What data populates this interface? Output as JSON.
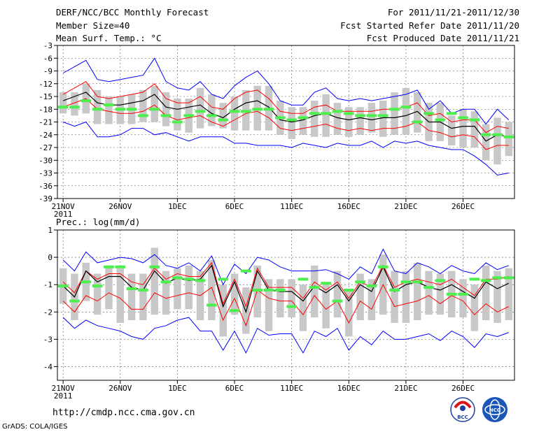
{
  "header": {
    "title": "DERF/NCC/BCC Monthly Forecast",
    "member_size": "Member Size=40",
    "variable": "Mean Surf. Temp.: °C",
    "period": "For 2011/11/21-2011/12/30",
    "start_date": "Fcst Started Refer Date 2011/11/20",
    "produced_date": "Fcst Produced Date 2011/11/21"
  },
  "footer": {
    "url": "http://cmdp.ncc.cma.gov.cn",
    "credit": "GrADS: COLA/IGES",
    "logo_bcc_text": "BCC",
    "logo_ncc_text": "NCC"
  },
  "colors": {
    "ens_max_min": "#0000ff",
    "spread": "#ff0000",
    "mean": "#000000",
    "box": "#c8c8c8",
    "observed_marker": "#4cf04c",
    "grid": "#555555"
  },
  "chart_data": [
    {
      "type": "line",
      "title": "Mean Surf. Temp.: °C",
      "x_tick_labels": [
        "21NOV",
        "26NOV",
        "1DEC",
        "6DEC",
        "11DEC",
        "16DEC",
        "21DEC",
        "26DEC"
      ],
      "x_tick_days": [
        1,
        6,
        11,
        16,
        21,
        26,
        31,
        36
      ],
      "x_year_label": "2011",
      "days": 40,
      "xlim": [
        0.5,
        40.5
      ],
      "ylim": [
        -39,
        -3
      ],
      "y_ticks": [
        -3,
        -6,
        -9,
        -12,
        -15,
        -18,
        -21,
        -24,
        -27,
        -30,
        -33,
        -36,
        -39
      ],
      "series": [
        {
          "name": "ensemble max",
          "color": "#0000ff",
          "values": [
            -9.5,
            -8,
            -6.5,
            -11,
            -11.5,
            -11,
            -10.5,
            -10,
            -6,
            -11.5,
            -13,
            -13.5,
            -11.5,
            -14.5,
            -15.5,
            -12.5,
            -10.5,
            -9,
            -12,
            -16,
            -17,
            -17,
            -14,
            -13,
            -15.5,
            -16,
            -15.5,
            -16,
            -15.5,
            -15,
            -14.5,
            -13.5,
            -18,
            -16,
            -19,
            -18,
            -18,
            -21.5,
            -18,
            -20.5
          ]
        },
        {
          "name": "upper spread",
          "color": "#ff0000",
          "values": [
            -14.5,
            -13,
            -11.5,
            -15,
            -15.5,
            -15,
            -14.5,
            -14,
            -12,
            -15.5,
            -16.5,
            -16.5,
            -15,
            -17.5,
            -18,
            -15.5,
            -14,
            -13.5,
            -15.5,
            -18.5,
            -19,
            -19,
            -17.5,
            -17,
            -18.5,
            -18.5,
            -18.5,
            -18.5,
            -18,
            -18,
            -17.5,
            -16.5,
            -19.5,
            -19,
            -21,
            -20.5,
            -20.5,
            -23.5,
            -22,
            -22.5
          ]
        },
        {
          "name": "ensemble mean",
          "color": "#000000",
          "values": [
            -16,
            -15,
            -14,
            -16.5,
            -17,
            -17,
            -16.5,
            -16,
            -14.5,
            -17.5,
            -18,
            -17.5,
            -17,
            -19,
            -20,
            -18,
            -16.5,
            -16,
            -17.5,
            -20.5,
            -21,
            -20.5,
            -19.5,
            -19,
            -20,
            -20.5,
            -20,
            -20.5,
            -20,
            -20,
            -19.5,
            -18.5,
            -21,
            -21,
            -22.5,
            -22,
            -22,
            -25.5,
            -24,
            -24.5
          ]
        },
        {
          "name": "lower spread",
          "color": "#ff0000",
          "values": [
            -17.5,
            -16.5,
            -15.5,
            -18,
            -18.5,
            -19,
            -19,
            -18.5,
            -17,
            -19.5,
            -20.5,
            -20,
            -19.5,
            -21,
            -22,
            -20.5,
            -19,
            -18.5,
            -20,
            -22.5,
            -23,
            -22.5,
            -22,
            -21.5,
            -22.5,
            -23,
            -22.5,
            -23,
            -22.5,
            -22.5,
            -22,
            -21,
            -23,
            -23.5,
            -24.5,
            -24,
            -24.5,
            -27.5,
            -26.5,
            -26.5
          ]
        },
        {
          "name": "ensemble min",
          "color": "#0000ff",
          "values": [
            -21,
            -22,
            -21,
            -24.5,
            -24.5,
            -24,
            -22.5,
            -22.5,
            -24,
            -23.5,
            -24.5,
            -25.5,
            -24.5,
            -24.5,
            -24.5,
            -26,
            -26,
            -26.5,
            -26.5,
            -26.5,
            -27,
            -26,
            -26.5,
            -27,
            -26,
            -26.5,
            -26.5,
            -25.5,
            -27,
            -25.5,
            -26,
            -25.5,
            -26.5,
            -27,
            -27.5,
            -27.5,
            -29,
            -31,
            -33.5,
            -33
          ]
        }
      ],
      "box_low": [
        -19,
        -19.5,
        -19,
        -21.5,
        -21.5,
        -21.5,
        -21.5,
        -21,
        -21,
        -22,
        -23,
        -23.5,
        -22.5,
        -22,
        -22.5,
        -23,
        -23,
        -23,
        -23,
        -24,
        -25,
        -24,
        -24.5,
        -24.5,
        -24,
        -24.5,
        -24,
        -23.5,
        -24.5,
        -24,
        -24,
        -23.5,
        -25.5,
        -25.5,
        -26.5,
        -27,
        -27,
        -30,
        -31,
        -29
      ],
      "box_high": [
        -14,
        -14,
        -12,
        -13.5,
        -15,
        -15,
        -14.5,
        -13.5,
        -12.5,
        -14,
        -15.5,
        -15.5,
        -13,
        -14.5,
        -16.5,
        -15,
        -13.5,
        -12.5,
        -12.5,
        -16,
        -17.5,
        -17.5,
        -16,
        -14.5,
        -16.5,
        -17.5,
        -17.5,
        -16.5,
        -16,
        -14,
        -13,
        -14,
        -16.5,
        -16.5,
        -19.5,
        -18,
        -18.5,
        -21.5,
        -20,
        -21
      ],
      "observed": [
        -17.5,
        -17.5,
        -16,
        -18,
        -17,
        -18,
        -18,
        -19.5,
        -18,
        -19.5,
        -21,
        -19.5,
        -18.5,
        -19.5,
        -20.5,
        -18.5,
        -18.5,
        -18,
        -18,
        -20,
        -20.5,
        -20,
        -19,
        -19,
        -18.5,
        -19,
        -19.5,
        -19.5,
        -19.5,
        -18,
        -17.5,
        -21,
        -19,
        -20.5,
        -19,
        -20,
        -20.5,
        -24,
        -24,
        -24.5
      ]
    },
    {
      "type": "line",
      "title": "Prec.: log(mm/d)",
      "x_tick_labels": [
        "21NOV",
        "26NOV",
        "1DEC",
        "6DEC",
        "11DEC",
        "16DEC",
        "21DEC",
        "26DEC"
      ],
      "x_tick_days": [
        1,
        6,
        11,
        16,
        21,
        26,
        31,
        36
      ],
      "x_year_label": "2011",
      "days": 40,
      "xlim": [
        0.5,
        40.5
      ],
      "ylim": [
        -4.5,
        1
      ],
      "y_ticks": [
        1,
        0,
        -1,
        -2,
        -3,
        -4
      ],
      "series": [
        {
          "name": "ensemble max",
          "color": "#0000ff",
          "values": [
            -0.1,
            -0.5,
            0.2,
            -0.2,
            -0.1,
            0,
            -0.05,
            -0.2,
            0.1,
            -0.3,
            -0.4,
            -0.2,
            -0.5,
            0.05,
            -1,
            -0.25,
            -0.6,
            0,
            -0.1,
            -0.35,
            -0.5,
            -0.5,
            -0.5,
            -0.45,
            -0.6,
            -0.8,
            -0.35,
            -0.6,
            0.3,
            -0.5,
            -0.6,
            -0.2,
            -0.35,
            -0.6,
            -0.3,
            -0.5,
            -0.6,
            -0.2,
            -0.45,
            -0.3
          ]
        },
        {
          "name": "upper spread",
          "color": "#ff0000",
          "values": [
            -0.9,
            -1.3,
            -0.5,
            -0.8,
            -0.6,
            -0.6,
            -0.9,
            -1,
            -0.4,
            -0.8,
            -0.6,
            -0.7,
            -0.7,
            -0.2,
            -1.7,
            -0.8,
            -1.8,
            -0.4,
            -1.1,
            -1.1,
            -1.1,
            -1.5,
            -0.9,
            -1.2,
            -0.9,
            -1.5,
            -0.9,
            -1.1,
            -0.3,
            -1.1,
            -0.9,
            -0.8,
            -0.9,
            -1,
            -0.8,
            -1.1,
            -1.4,
            -0.8,
            -0.8,
            -0.7
          ]
        },
        {
          "name": "ensemble mean",
          "color": "#000000",
          "values": [
            -1.05,
            -1.45,
            -0.5,
            -0.9,
            -0.7,
            -0.7,
            -1.1,
            -1.2,
            -0.5,
            -0.95,
            -0.75,
            -0.85,
            -0.8,
            -0.3,
            -1.8,
            -0.9,
            -2,
            -0.5,
            -1.2,
            -1.25,
            -1.25,
            -1.6,
            -1.05,
            -1.3,
            -1,
            -1.6,
            -1,
            -1.25,
            -0.35,
            -1.25,
            -1,
            -0.9,
            -1.1,
            -1.2,
            -1,
            -1.25,
            -1.5,
            -0.9,
            -1.15,
            -0.95
          ]
        },
        {
          "name": "lower spread",
          "color": "#ff0000",
          "values": [
            -1.6,
            -2,
            -1.4,
            -1.6,
            -1.3,
            -1.5,
            -1.9,
            -1.9,
            -1.3,
            -1.5,
            -1.4,
            -1.3,
            -1.4,
            -1.1,
            -2.3,
            -1.5,
            -2.5,
            -1.2,
            -1.5,
            -1.6,
            -1.6,
            -2.1,
            -1.4,
            -1.9,
            -1.6,
            -2.4,
            -1.6,
            -1.9,
            -1,
            -1.8,
            -1.7,
            -1.6,
            -1.4,
            -1.7,
            -1.4,
            -1.6,
            -2.1,
            -1.7,
            -2,
            -1.8
          ]
        },
        {
          "name": "ensemble min",
          "color": "#0000ff",
          "values": [
            -2.2,
            -2.6,
            -2.3,
            -2.5,
            -2.6,
            -2.7,
            -2.9,
            -3,
            -2.6,
            -2.5,
            -2.3,
            -2.2,
            -2.7,
            -2.7,
            -3.4,
            -2.7,
            -3.5,
            -2.6,
            -2.85,
            -2.8,
            -2.8,
            -3.5,
            -2.7,
            -2.9,
            -2.6,
            -3.4,
            -2.9,
            -3.2,
            -2.7,
            -3,
            -3,
            -2.9,
            -2.8,
            -3.05,
            -2.7,
            -2.9,
            -3.3,
            -2.8,
            -2.9,
            -2.75
          ]
        },
        {
          "name": "observed",
          "color": "#4cf04c",
          "values": [
            -1.05,
            -1.6,
            -0.9,
            -1.05,
            -0.35,
            -0.35,
            -1.15,
            -1.2,
            -0.35,
            -0.9,
            -0.75,
            -0.8,
            -0.85,
            -1.75,
            -0.8,
            -1.95,
            -0.5,
            -1.2,
            -1.2,
            -1.2,
            -1.8,
            -0.8,
            -1.1,
            -0.95,
            -1.6,
            -1.2,
            -0.9,
            -1.05,
            -0.35,
            -1.2,
            -0.9,
            -0.9,
            -1.1,
            -0.85,
            -1.35,
            -1.35,
            -0.8,
            -0.85,
            -0.75,
            -0.75
          ]
        }
      ],
      "box_low": [
        -1.7,
        -2.3,
        -1.6,
        -2.1,
        -1.9,
        -2.4,
        -2.3,
        -2.3,
        -2.1,
        -2.1,
        -1.9,
        -1.9,
        -2.3,
        -2.3,
        -2.9,
        -2.1,
        -2.8,
        -2.2,
        -2.7,
        -2.2,
        -2.2,
        -2.7,
        -2.2,
        -2.6,
        -2.2,
        -2.9,
        -2.3,
        -2.3,
        -2.1,
        -2.4,
        -2.4,
        -2.3,
        -2.1,
        -2.1,
        -2.2,
        -2.2,
        -2.7,
        -2.3,
        -2.4,
        -2.3
      ],
      "box_high": [
        -0.4,
        -0.6,
        -0.2,
        -0.6,
        -0.3,
        -0.4,
        -0.6,
        -0.6,
        0.35,
        -0.5,
        -0.4,
        -0.3,
        -0.5,
        -0.1,
        -1,
        -0.6,
        -1.1,
        -0.3,
        -0.8,
        -0.8,
        -0.8,
        -1,
        -0.3,
        -0.9,
        -0.5,
        -1.2,
        -0.6,
        -0.8,
        0.1,
        -0.5,
        -0.5,
        -0.2,
        -0.5,
        -0.6,
        -0.5,
        -0.8,
        -1,
        -0.3,
        -0.5,
        -0.4
      ]
    }
  ]
}
